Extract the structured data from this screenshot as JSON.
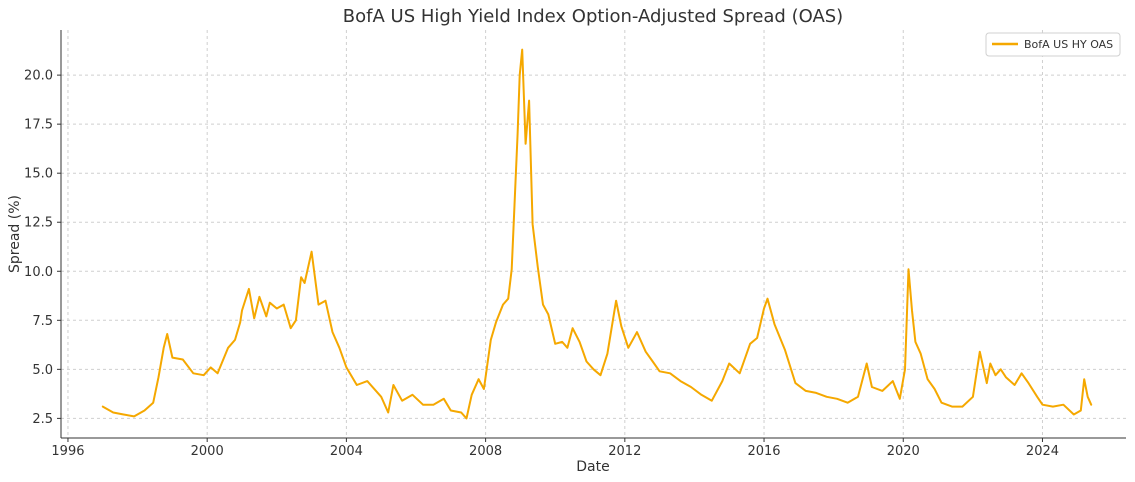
{
  "chart_data": {
    "type": "line",
    "title": "BofA US High Yield Index Option-Adjusted Spread (OAS)",
    "xlabel": "Date",
    "ylabel": "Spread (%)",
    "xlim": [
      1995.8,
      2026.4
    ],
    "ylim": [
      1.5,
      22.3
    ],
    "xticks": [
      1996,
      2000,
      2004,
      2008,
      2012,
      2016,
      2020,
      2024
    ],
    "xtick_labels": [
      "1996",
      "2000",
      "2004",
      "2008",
      "2012",
      "2016",
      "2020",
      "2024"
    ],
    "yticks": [
      2.5,
      5.0,
      7.5,
      10.0,
      12.5,
      15.0,
      17.5,
      20.0
    ],
    "ytick_labels": [
      "2.5",
      "5.0",
      "7.5",
      "10.0",
      "12.5",
      "15.0",
      "17.5",
      "20.0"
    ],
    "grid": true,
    "legend_position": "top-right",
    "series": [
      {
        "name": "BofA US HY OAS",
        "color": "#f5a800",
        "x": [
          1997.0,
          1997.3,
          1997.6,
          1997.9,
          1998.2,
          1998.45,
          1998.6,
          1998.75,
          1998.85,
          1999.0,
          1999.3,
          1999.6,
          1999.9,
          2000.1,
          2000.3,
          2000.6,
          2000.8,
          2000.95,
          2001.0,
          2001.2,
          2001.35,
          2001.5,
          2001.7,
          2001.8,
          2002.0,
          2002.2,
          2002.4,
          2002.55,
          2002.7,
          2002.8,
          2003.0,
          2003.2,
          2003.4,
          2003.6,
          2003.8,
          2004.0,
          2004.3,
          2004.6,
          2005.0,
          2005.2,
          2005.35,
          2005.6,
          2005.9,
          2006.2,
          2006.5,
          2006.8,
          2007.0,
          2007.3,
          2007.45,
          2007.6,
          2007.8,
          2007.95,
          2008.15,
          2008.3,
          2008.5,
          2008.65,
          2008.75,
          2008.85,
          2008.92,
          2008.98,
          2009.05,
          2009.15,
          2009.25,
          2009.35,
          2009.5,
          2009.65,
          2009.8,
          2010.0,
          2010.2,
          2010.35,
          2010.5,
          2010.7,
          2010.9,
          2011.1,
          2011.3,
          2011.5,
          2011.75,
          2011.9,
          2012.1,
          2012.35,
          2012.6,
          2012.8,
          2013.0,
          2013.3,
          2013.6,
          2013.9,
          2014.2,
          2014.5,
          2014.8,
          2015.0,
          2015.3,
          2015.6,
          2015.8,
          2016.0,
          2016.1,
          2016.3,
          2016.6,
          2016.9,
          2017.2,
          2017.5,
          2017.8,
          2018.1,
          2018.4,
          2018.7,
          2018.95,
          2019.1,
          2019.4,
          2019.7,
          2019.9,
          2020.05,
          2020.15,
          2020.25,
          2020.35,
          2020.5,
          2020.7,
          2020.9,
          2021.1,
          2021.4,
          2021.7,
          2022.0,
          2022.2,
          2022.4,
          2022.5,
          2022.65,
          2022.8,
          2022.95,
          2023.2,
          2023.4,
          2023.6,
          2023.85,
          2024.0,
          2024.3,
          2024.6,
          2024.9,
          2025.1,
          2025.2,
          2025.3,
          2025.4
        ],
        "values": [
          3.1,
          2.8,
          2.7,
          2.6,
          2.9,
          3.3,
          4.6,
          6.1,
          6.8,
          5.6,
          5.5,
          4.8,
          4.7,
          5.1,
          4.8,
          6.1,
          6.5,
          7.4,
          8.0,
          9.1,
          7.6,
          8.7,
          7.7,
          8.4,
          8.1,
          8.3,
          7.1,
          7.5,
          9.7,
          9.4,
          11.0,
          8.3,
          8.5,
          6.9,
          6.1,
          5.1,
          4.2,
          4.4,
          3.6,
          2.8,
          4.2,
          3.4,
          3.7,
          3.2,
          3.2,
          3.5,
          2.9,
          2.8,
          2.5,
          3.7,
          4.5,
          4.0,
          6.5,
          7.4,
          8.3,
          8.6,
          10.1,
          14.2,
          17.0,
          20.0,
          21.3,
          16.5,
          18.7,
          12.4,
          10.2,
          8.3,
          7.8,
          6.3,
          6.4,
          6.1,
          7.1,
          6.4,
          5.4,
          5.0,
          4.7,
          5.8,
          8.5,
          7.2,
          6.1,
          6.9,
          5.9,
          5.4,
          4.9,
          4.8,
          4.4,
          4.1,
          3.7,
          3.4,
          4.4,
          5.3,
          4.8,
          6.3,
          6.6,
          8.1,
          8.6,
          7.3,
          6.0,
          4.3,
          3.9,
          3.8,
          3.6,
          3.5,
          3.3,
          3.6,
          5.3,
          4.1,
          3.9,
          4.4,
          3.5,
          5.0,
          10.1,
          8.0,
          6.4,
          5.8,
          4.5,
          4.0,
          3.3,
          3.1,
          3.1,
          3.6,
          5.9,
          4.3,
          5.3,
          4.7,
          5.0,
          4.6,
          4.2,
          4.8,
          4.3,
          3.6,
          3.2,
          3.1,
          3.2,
          2.7,
          2.9,
          4.5,
          3.6,
          3.2
        ]
      }
    ]
  }
}
